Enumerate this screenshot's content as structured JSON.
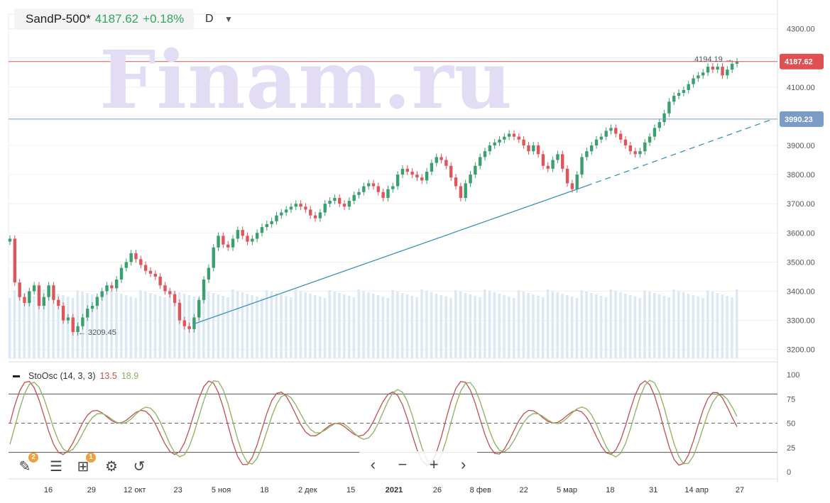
{
  "header": {
    "symbol": "SandP-500*",
    "price": "4187.62",
    "change": "+0.18%",
    "timeframe": "D"
  },
  "watermark": "Finam.ru",
  "chart_data": {
    "type": "candlestick",
    "y_range": [
      3170,
      4350
    ],
    "y_ticks": [
      "4300.00",
      "4200.00",
      "4100.00",
      "4000.00",
      "3900.00",
      "3800.00",
      "3700.00",
      "3600.00",
      "3500.00",
      "3400.00",
      "3300.00",
      "3200.00"
    ],
    "x_labels": [
      "16",
      "29",
      "12 окт",
      "23",
      "5 ноя",
      "18",
      "2 дек",
      "15",
      "2021",
      "26",
      "8 фев",
      "22",
      "5 мар",
      "18",
      "31",
      "14 апр",
      "27"
    ],
    "closes": [
      3580,
      3430,
      3380,
      3360,
      3400,
      3420,
      3350,
      3380,
      3420,
      3370,
      3350,
      3300,
      3310,
      3260,
      3280,
      3310,
      3340,
      3350,
      3380,
      3400,
      3420,
      3410,
      3440,
      3480,
      3500,
      3530,
      3510,
      3490,
      3470,
      3460,
      3450,
      3420,
      3400,
      3390,
      3360,
      3300,
      3280,
      3270,
      3310,
      3370,
      3440,
      3480,
      3550,
      3590,
      3560,
      3550,
      3580,
      3610,
      3590,
      3570,
      3580,
      3600,
      3620,
      3630,
      3640,
      3660,
      3670,
      3680,
      3690,
      3700,
      3690,
      3680,
      3660,
      3650,
      3670,
      3700,
      3710,
      3720,
      3700,
      3690,
      3710,
      3730,
      3740,
      3760,
      3770,
      3760,
      3740,
      3720,
      3750,
      3760,
      3800,
      3820,
      3810,
      3800,
      3790,
      3780,
      3810,
      3840,
      3860,
      3850,
      3830,
      3790,
      3760,
      3720,
      3770,
      3800,
      3830,
      3860,
      3880,
      3900,
      3910,
      3920,
      3930,
      3940,
      3930,
      3920,
      3900,
      3880,
      3900,
      3870,
      3830,
      3820,
      3850,
      3870,
      3820,
      3770,
      3750,
      3800,
      3860,
      3880,
      3900,
      3920,
      3930,
      3950,
      3960,
      3940,
      3920,
      3900,
      3880,
      3870,
      3880,
      3910,
      3930,
      3960,
      3980,
      4010,
      4050,
      4070,
      4080,
      4090,
      4110,
      4130,
      4140,
      4150,
      4170,
      4160,
      4170,
      4140,
      4160,
      4180,
      4187.62
    ],
    "h_lines": [
      {
        "value": 4187.62,
        "label": "4187.62",
        "color": "#e05050"
      },
      {
        "value": 3990.23,
        "label": "3990.23",
        "color": "#7a9cc6"
      }
    ],
    "annotations": [
      "4194.19",
      "3209.45"
    ],
    "oscillator": {
      "name": "StoOsc (14, 3, 3)",
      "k_value": "13.5",
      "d_value": "18.9",
      "ticks": [
        "100",
        "75",
        "50",
        "25",
        "0"
      ],
      "levels": [
        80,
        50,
        20
      ],
      "k_color": "#c0504d",
      "d_color": "#8faf5f"
    }
  }
}
